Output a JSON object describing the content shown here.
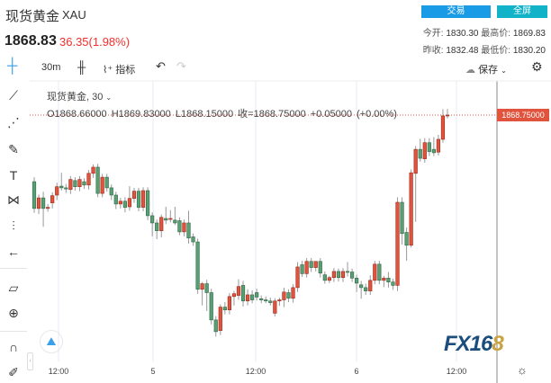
{
  "header": {
    "title": "现货黄金",
    "symbol": "XAU",
    "price": "1868.83",
    "change": "36.35(1.98%)",
    "trade_button": "交易",
    "fullscreen_button": "全屏",
    "stats": {
      "open_label": "今开:",
      "open": "1830.30",
      "high_label": "最高价:",
      "high": "1869.83",
      "prev_close_label": "昨收:",
      "prev_close": "1832.48",
      "low_label": "最低价:",
      "low": "1830.20"
    }
  },
  "toolbar": {
    "interval": "30m",
    "indicators": "指标",
    "save": "保存"
  },
  "legend": {
    "name": "现货黄金, 30",
    "open": "O1868.66000",
    "high": "H1869.83000",
    "low": "L1868.15000",
    "close": "收=1868.75000",
    "delta": "+0.05000 (+0.00%)"
  },
  "price_tag": "1868.75000",
  "colors": {
    "up": "#e0533d",
    "down": "#5a9e74",
    "trade": "#1a9be6",
    "fullscreen": "#12b2c9"
  },
  "left_tools": [
    "crosshair-icon",
    "trend-line-icon",
    "pitchfork-icon",
    "brush-icon",
    "text-icon",
    "pattern-icon",
    "measure-icon",
    "back-arrow-icon",
    "ruler-icon",
    "zoom-in-icon",
    "magnet-icon",
    "lock-drawing-icon"
  ],
  "logo": "FX168",
  "chart_data": {
    "type": "candlestick",
    "x_tick_labels": [
      "12:00",
      "5",
      "12:00",
      "6",
      "12:00"
    ],
    "last_price": 1868.75,
    "candles_ohlc": [
      [
        1856.8,
        1857.6,
        1851.2,
        1852.0
      ],
      [
        1852.0,
        1854.5,
        1851.0,
        1853.9
      ],
      [
        1853.9,
        1855.0,
        1848.7,
        1852.0
      ],
      [
        1852.0,
        1852.8,
        1851.4,
        1852.2
      ],
      [
        1853.0,
        1854.9,
        1852.0,
        1854.3
      ],
      [
        1854.4,
        1856.6,
        1853.5,
        1855.9
      ],
      [
        1856.0,
        1858.4,
        1855.2,
        1855.7
      ],
      [
        1855.7,
        1856.4,
        1854.8,
        1855.5
      ],
      [
        1855.4,
        1857.8,
        1854.6,
        1857.2
      ],
      [
        1857.0,
        1857.6,
        1855.2,
        1855.9
      ],
      [
        1855.9,
        1857.8,
        1855.1,
        1857.2
      ],
      [
        1856.8,
        1857.4,
        1855.5,
        1856.2
      ],
      [
        1856.2,
        1858.9,
        1855.4,
        1858.3
      ],
      [
        1858.3,
        1859.9,
        1857.5,
        1859.4
      ],
      [
        1859.4,
        1860.0,
        1854.0,
        1854.7
      ],
      [
        1854.7,
        1858.2,
        1854.0,
        1857.6
      ],
      [
        1857.6,
        1858.2,
        1855.0,
        1855.7
      ],
      [
        1855.7,
        1856.3,
        1853.5,
        1854.4
      ],
      [
        1854.4,
        1855.0,
        1851.9,
        1852.8
      ],
      [
        1852.8,
        1853.9,
        1852.0,
        1853.3
      ],
      [
        1853.3,
        1854.0,
        1851.3,
        1852.2
      ],
      [
        1852.3,
        1856.0,
        1851.6,
        1853.8
      ],
      [
        1853.8,
        1855.7,
        1853.0,
        1855.1
      ],
      [
        1855.1,
        1855.7,
        1851.5,
        1852.2
      ],
      [
        1852.2,
        1855.8,
        1851.5,
        1855.2
      ],
      [
        1855.2,
        1855.8,
        1849.9,
        1850.7
      ],
      [
        1850.7,
        1851.3,
        1847.0,
        1849.4
      ],
      [
        1849.4,
        1850.0,
        1846.5,
        1848.0
      ],
      [
        1848.0,
        1850.9,
        1846.8,
        1850.4
      ],
      [
        1850.2,
        1852.3,
        1849.2,
        1849.9
      ],
      [
        1850.1,
        1851.7,
        1849.5,
        1850.2
      ],
      [
        1849.9,
        1852.3,
        1849.0,
        1849.4
      ],
      [
        1849.8,
        1850.4,
        1847.2,
        1847.8
      ],
      [
        1847.8,
        1850.0,
        1847.0,
        1849.4
      ],
      [
        1849.4,
        1851.6,
        1845.7,
        1846.7
      ],
      [
        1846.9,
        1847.5,
        1845.3,
        1846.0
      ],
      [
        1846.0,
        1846.6,
        1836.7,
        1837.5
      ],
      [
        1837.5,
        1838.8,
        1834.6,
        1838.5
      ],
      [
        1838.5,
        1839.2,
        1833.6,
        1836.9
      ],
      [
        1836.9,
        1837.6,
        1831.2,
        1832.0
      ],
      [
        1832.0,
        1832.7,
        1829.0,
        1829.9
      ],
      [
        1830.1,
        1834.8,
        1829.3,
        1834.3
      ],
      [
        1834.3,
        1835.2,
        1833.0,
        1833.8
      ],
      [
        1833.8,
        1836.8,
        1833.0,
        1836.2
      ],
      [
        1836.2,
        1837.2,
        1834.6,
        1836.7
      ],
      [
        1836.4,
        1839.3,
        1835.6,
        1838.0
      ],
      [
        1838.2,
        1839.0,
        1834.4,
        1835.4
      ],
      [
        1835.4,
        1837.5,
        1834.6,
        1836.5
      ],
      [
        1836.5,
        1837.3,
        1835.0,
        1835.6
      ],
      [
        1836.9,
        1837.6,
        1835.5,
        1836.1
      ],
      [
        1835.8,
        1836.4,
        1835.0,
        1835.6
      ],
      [
        1835.6,
        1836.2,
        1835.0,
        1835.4
      ],
      [
        1835.4,
        1836.0,
        1834.6,
        1835.1
      ],
      [
        1833.2,
        1835.9,
        1832.6,
        1835.4
      ],
      [
        1835.4,
        1836.0,
        1834.5,
        1835.6
      ],
      [
        1835.6,
        1837.8,
        1834.3,
        1837.0
      ],
      [
        1836.9,
        1837.5,
        1835.2,
        1835.9
      ],
      [
        1835.9,
        1838.4,
        1835.1,
        1837.8
      ],
      [
        1837.8,
        1842.4,
        1837.0,
        1841.5
      ],
      [
        1841.9,
        1842.6,
        1839.7,
        1840.3
      ],
      [
        1840.3,
        1843.1,
        1839.6,
        1842.5
      ],
      [
        1842.5,
        1843.1,
        1840.6,
        1841.4
      ],
      [
        1841.4,
        1842.1,
        1840.7,
        1842.5
      ],
      [
        1842.5,
        1843.1,
        1839.6,
        1840.4
      ],
      [
        1840.1,
        1840.7,
        1838.5,
        1839.1
      ],
      [
        1839.1,
        1839.9,
        1838.6,
        1839.6
      ],
      [
        1839.6,
        1841.3,
        1838.8,
        1840.7
      ],
      [
        1840.7,
        1841.2,
        1838.9,
        1839.6
      ],
      [
        1839.6,
        1841.3,
        1838.8,
        1840.7
      ],
      [
        1840.7,
        1842.4,
        1839.8,
        1840.6
      ],
      [
        1840.6,
        1841.2,
        1838.8,
        1839.5
      ],
      [
        1839.5,
        1840.1,
        1837.0,
        1838.6
      ],
      [
        1838.3,
        1839.0,
        1835.8,
        1837.8
      ],
      [
        1837.8,
        1838.5,
        1836.5,
        1837.2
      ],
      [
        1837.2,
        1840.0,
        1836.5,
        1839.1
      ],
      [
        1839.1,
        1842.6,
        1838.4,
        1842.0
      ],
      [
        1842.0,
        1842.6,
        1838.4,
        1839.1
      ],
      [
        1839.1,
        1839.9,
        1837.9,
        1839.5
      ],
      [
        1839.5,
        1840.6,
        1837.8,
        1838.8
      ],
      [
        1838.8,
        1839.4,
        1837.4,
        1838.2
      ],
      [
        1838.2,
        1854.0,
        1837.2,
        1853.1
      ],
      [
        1853.1,
        1854.0,
        1845.5,
        1847.5
      ],
      [
        1847.7,
        1848.6,
        1842.6,
        1845.4
      ],
      [
        1845.4,
        1859.0,
        1845.0,
        1858.4
      ],
      [
        1858.3,
        1863.2,
        1849.6,
        1862.6
      ],
      [
        1862.6,
        1864.5,
        1860.4,
        1861.0
      ],
      [
        1860.9,
        1864.6,
        1860.2,
        1863.8
      ],
      [
        1863.8,
        1864.6,
        1861.4,
        1862.2
      ],
      [
        1862.6,
        1864.8,
        1861.4,
        1862.0
      ],
      [
        1862.1,
        1865.2,
        1861.5,
        1864.4
      ],
      [
        1864.4,
        1869.8,
        1863.8,
        1868.6
      ],
      [
        1868.66,
        1869.83,
        1868.15,
        1868.75
      ]
    ]
  }
}
